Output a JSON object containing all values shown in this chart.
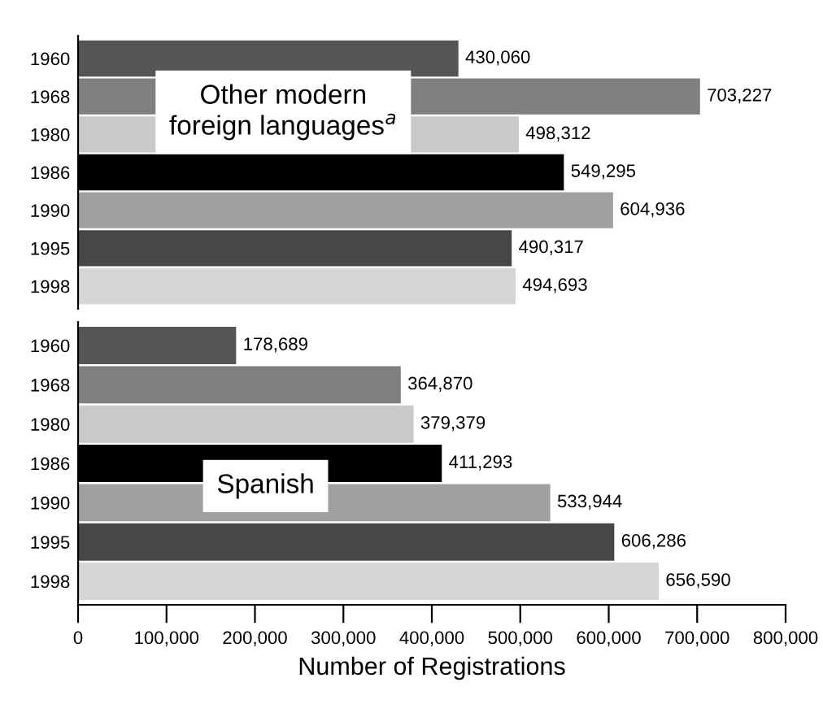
{
  "chart_data": [
    {
      "type": "bar",
      "orientation": "horizontal",
      "categories": [
        "1960",
        "1968",
        "1980",
        "1986",
        "1990",
        "1995",
        "1998"
      ],
      "values": [
        430060,
        703227,
        498312,
        549295,
        604936,
        490317,
        494693
      ],
      "colors": [
        "#555555",
        "#7f7f7f",
        "#c9c9c9",
        "#000000",
        "#a0a0a0",
        "#474747",
        "#d6d6d6"
      ],
      "value_labels": [
        "430,060",
        "703,227",
        "498,312",
        "549,295",
        "604,936",
        "490,317",
        "494,693"
      ],
      "xlim": [
        0,
        800000
      ],
      "tick_labels": "y",
      "grid": false,
      "annotations": [
        "Other modern\nforeign languages$^{a}$"
      ]
    },
    {
      "type": "bar",
      "orientation": "horizontal",
      "categories": [
        "1960",
        "1968",
        "1980",
        "1986",
        "1990",
        "1995",
        "1998"
      ],
      "values": [
        178689,
        364870,
        379379,
        411293,
        533944,
        606286,
        656590
      ],
      "colors": [
        "#555555",
        "#7f7f7f",
        "#c9c9c9",
        "#000000",
        "#a0a0a0",
        "#474747",
        "#d6d6d6"
      ],
      "value_labels": [
        "178,689",
        "364,870",
        "379,379",
        "411,293",
        "533,944",
        "606,286",
        "656,590"
      ],
      "xlim": [
        0,
        800000
      ],
      "xticks": [
        0,
        {
          "value": 100000,
          "label": "100,000"
        },
        {
          "value": 200000,
          "label": "200,000"
        },
        {
          "value": 300000,
          "label": "300,000"
        },
        {
          "value": 400000,
          "label": "400,000"
        },
        {
          "value": 500000,
          "label": "500,000"
        },
        {
          "value": 600000,
          "label": "600,000"
        },
        {
          "value": 700000,
          "label": "700,000"
        },
        {
          "value": 800000,
          "label": "800,000"
        }
      ],
      "xlabel": "Number of Registrations",
      "grid": false,
      "annotations": [
        "Spanish"
      ]
    }
  ]
}
